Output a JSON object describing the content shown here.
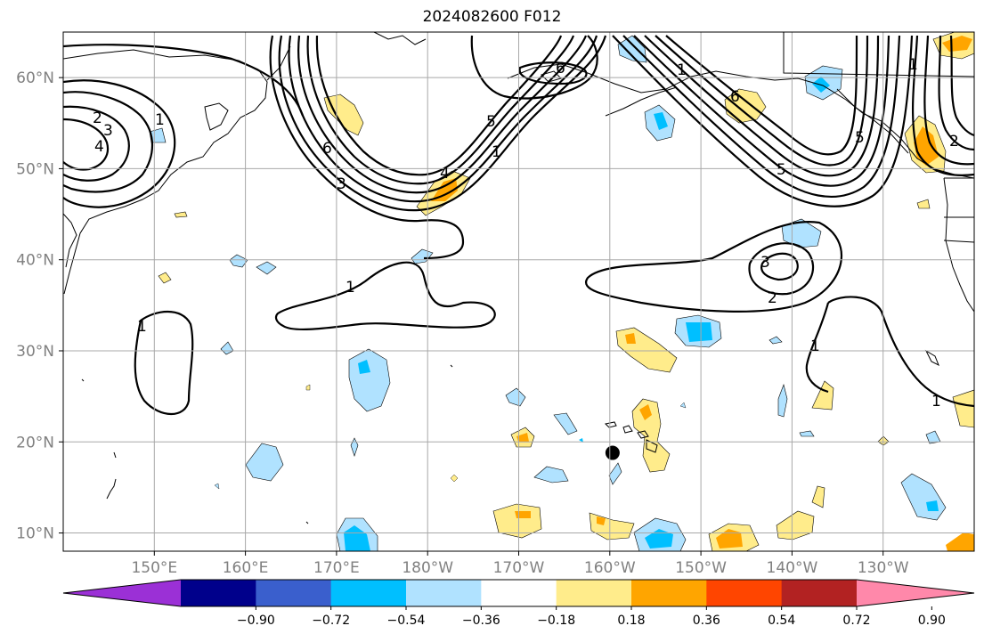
{
  "title": "2024082600 F012",
  "map": {
    "lon_range_east": [
      140,
      240
    ],
    "lat_range": [
      8,
      65
    ],
    "lat_ticks": [
      {
        "value": 60,
        "label": "60°N"
      },
      {
        "value": 50,
        "label": "50°N"
      },
      {
        "value": 40,
        "label": "40°N"
      },
      {
        "value": 30,
        "label": "30°N"
      },
      {
        "value": 20,
        "label": "20°N"
      },
      {
        "value": 10,
        "label": "10°N"
      }
    ],
    "lon_ticks": [
      {
        "value": 150,
        "label": "150°E"
      },
      {
        "value": 160,
        "label": "160°E"
      },
      {
        "value": 170,
        "label": "170°E"
      },
      {
        "value": 180,
        "label": "180°W"
      },
      {
        "value": 190,
        "label": "170°W"
      },
      {
        "value": 200,
        "label": "160°W"
      },
      {
        "value": 210,
        "label": "150°W"
      },
      {
        "value": 220,
        "label": "140°W"
      },
      {
        "value": 230,
        "label": "130°W"
      }
    ],
    "contour_labels": [
      "1",
      "2",
      "3",
      "4",
      "5",
      "6"
    ],
    "storm_marker": {
      "lon": 200.3,
      "lat": 18.8
    },
    "grid": true
  },
  "colorbar": {
    "ticks": [
      "−0.90",
      "−0.72",
      "−0.54",
      "−0.36",
      "−0.18",
      "0.18",
      "0.36",
      "0.54",
      "0.72",
      "0.90"
    ],
    "colors": [
      "#9b30d6",
      "#00008b",
      "#3a5fcd",
      "#00bfff",
      "#b0e2ff",
      "#ffffff",
      "#ffec8b",
      "#ffa500",
      "#ff4500",
      "#b22222",
      "#ff88aa"
    ],
    "extend": "both"
  }
}
